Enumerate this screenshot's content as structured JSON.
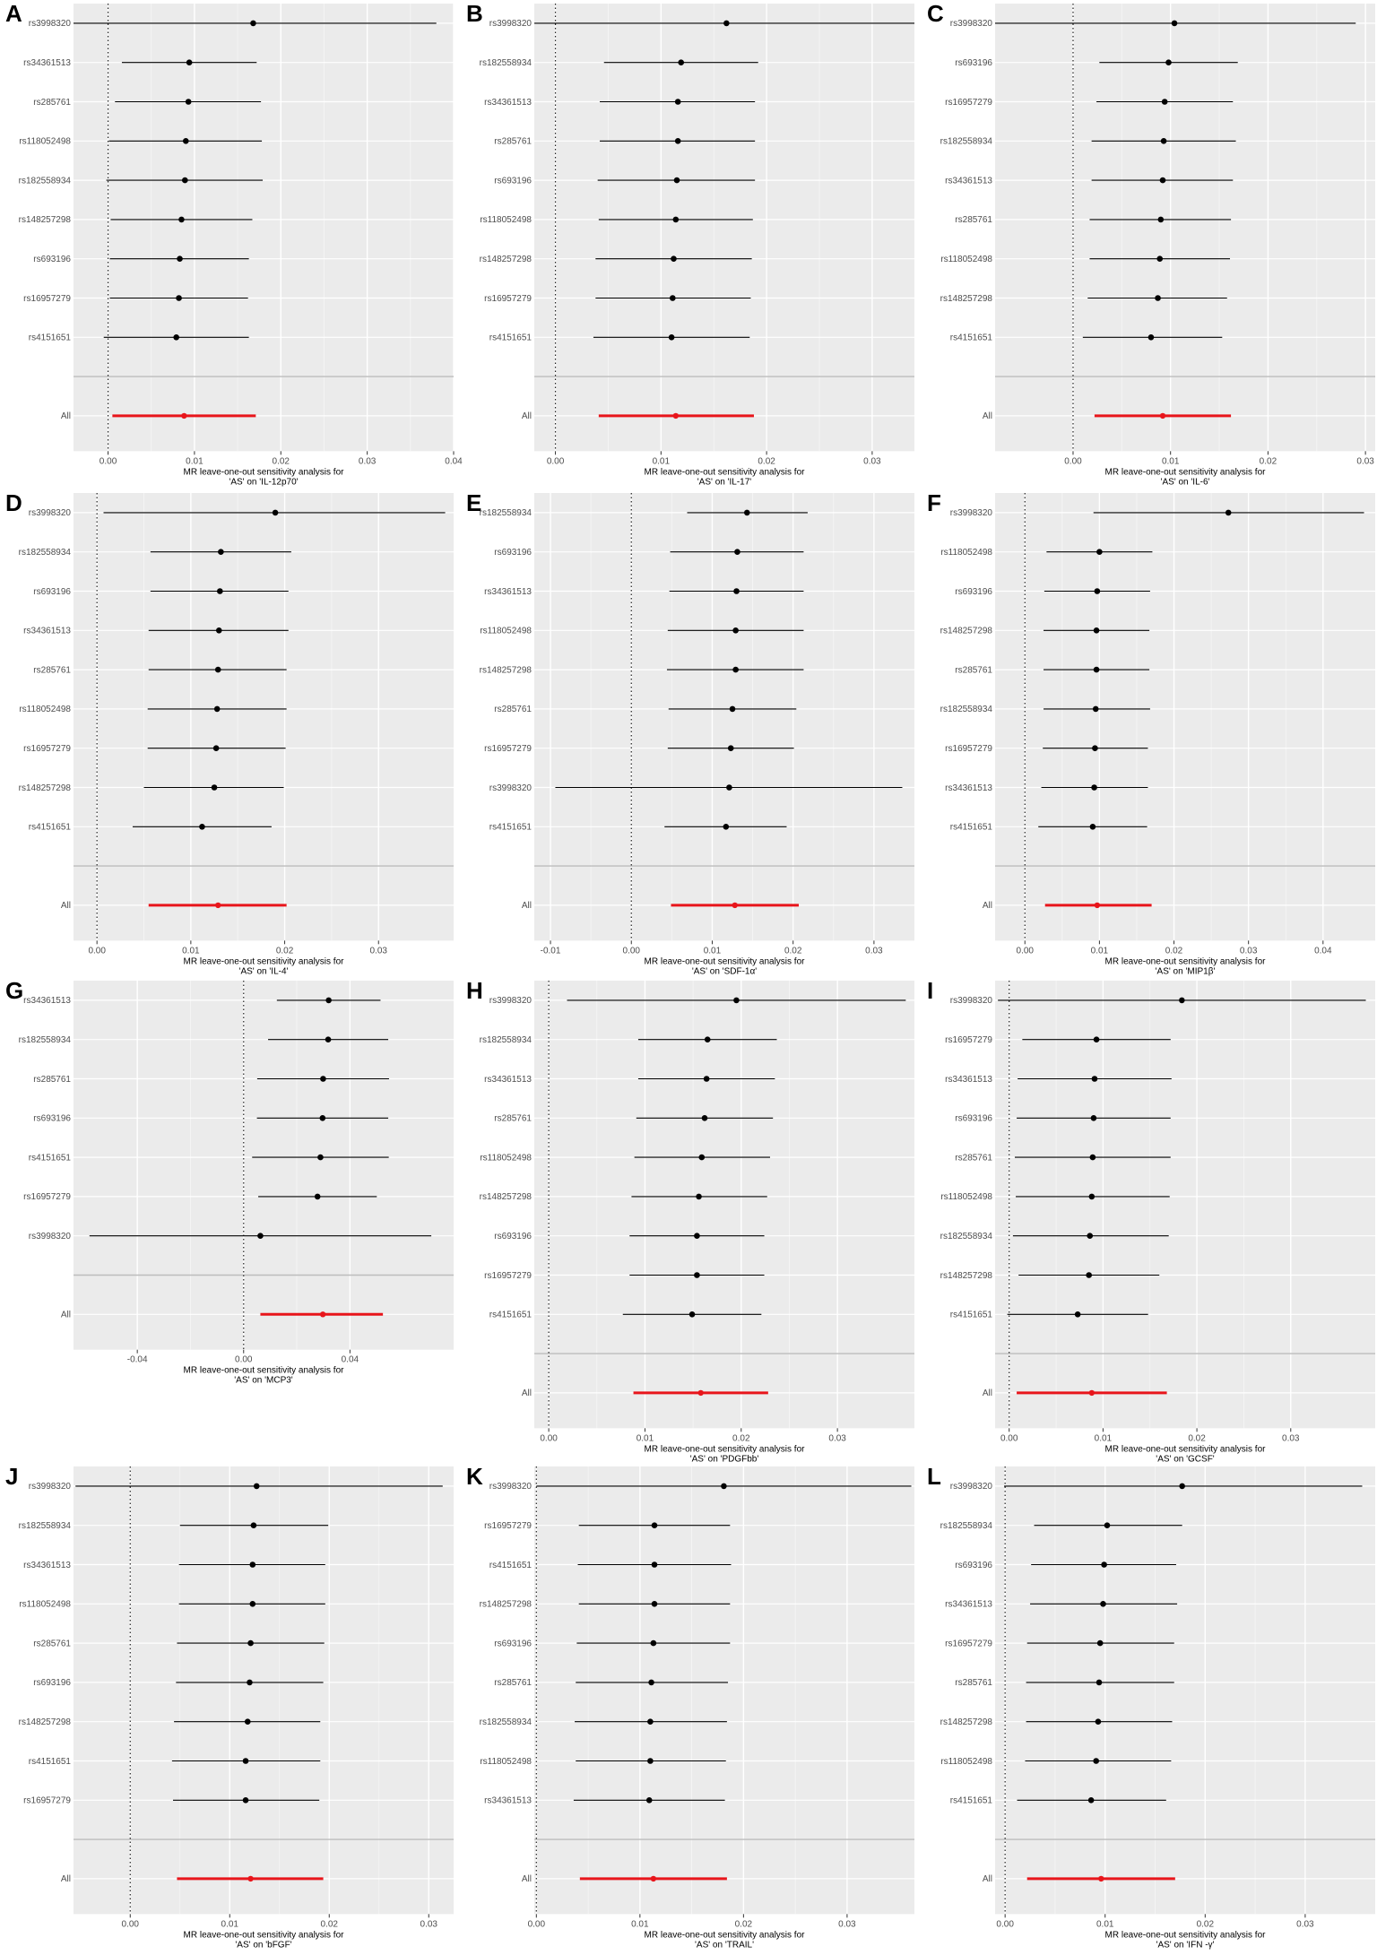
{
  "chart_data": [
    {
      "letter": "A",
      "type": "forest",
      "title": "",
      "xlabel": "MR leave-one-out sensitivity analysis for\n'AS' on 'IL-12p70'",
      "ylabel": "",
      "xlim": [
        -0.004,
        0.04
      ],
      "xticks": [
        0.0,
        0.01,
        0.02,
        0.03,
        0.04
      ],
      "snps": [
        "rs3998320",
        "rs34361513",
        "rs285761",
        "rs118052498",
        "rs182558934",
        "rs148257298",
        "rs693196",
        "rs16957279",
        "rs4151651"
      ],
      "estimate": [
        0.0168,
        0.0094,
        0.0093,
        0.009,
        0.0089,
        0.0085,
        0.0083,
        0.0082,
        0.0079
      ],
      "lower": [
        -0.004,
        0.0016,
        0.0008,
        0.0001,
        -0.0002,
        0.0003,
        0.0002,
        0.0002,
        -0.0005
      ],
      "upper": [
        0.038,
        0.0172,
        0.0177,
        0.0178,
        0.0179,
        0.0167,
        0.0163,
        0.0162,
        0.0163
      ],
      "all": {
        "label": "All",
        "estimate": 0.0088,
        "lower": 0.0005,
        "upper": 0.0171
      },
      "grid": true,
      "colors": {
        "snp": "#000000",
        "all": "#e8151b",
        "panel_bg": "#ebebeb"
      }
    },
    {
      "letter": "B",
      "type": "forest",
      "title": "",
      "xlabel": "MR leave-one-out sensitivity analysis for\n'AS' on 'IL-17'",
      "ylabel": "",
      "xlim": [
        -0.002,
        0.034
      ],
      "xticks": [
        0.0,
        0.01,
        0.02,
        0.03
      ],
      "snps": [
        "rs3998320",
        "rs182558934",
        "rs34361513",
        "rs285761",
        "rs693196",
        "rs118052498",
        "rs148257298",
        "rs16957279",
        "rs4151651"
      ],
      "estimate": [
        0.0162,
        0.0119,
        0.0116,
        0.0116,
        0.0115,
        0.0114,
        0.0112,
        0.0111,
        0.011
      ],
      "lower": [
        -0.002,
        0.0046,
        0.0042,
        0.0042,
        0.004,
        0.0041,
        0.0038,
        0.0038,
        0.0036
      ],
      "upper": [
        0.034,
        0.0192,
        0.0189,
        0.0189,
        0.0189,
        0.0187,
        0.0186,
        0.0185,
        0.0184
      ],
      "all": {
        "label": "All",
        "estimate": 0.0114,
        "lower": 0.0041,
        "upper": 0.0188
      },
      "grid": true,
      "colors": {
        "snp": "#000000",
        "all": "#e8151b",
        "panel_bg": "#ebebeb"
      }
    },
    {
      "letter": "C",
      "type": "forest",
      "title": "",
      "xlabel": "MR leave-one-out sensitivity analysis for\n'AS' on 'IL-6'",
      "ylabel": "",
      "xlim": [
        -0.008,
        0.031
      ],
      "xticks": [
        0.0,
        0.01,
        0.02,
        0.03
      ],
      "snps": [
        "rs3998320",
        "rs693196",
        "rs16957279",
        "rs182558934",
        "rs34361513",
        "rs285761",
        "rs118052498",
        "rs148257298",
        "rs4151651"
      ],
      "estimate": [
        0.0104,
        0.0098,
        0.0094,
        0.0093,
        0.0092,
        0.009,
        0.0089,
        0.0087,
        0.008
      ],
      "lower": [
        -0.008,
        0.0027,
        0.0024,
        0.0019,
        0.0019,
        0.0017,
        0.0017,
        0.0015,
        0.001
      ],
      "upper": [
        0.029,
        0.0169,
        0.0164,
        0.0167,
        0.0164,
        0.0162,
        0.0161,
        0.0158,
        0.0153
      ],
      "all": {
        "label": "All",
        "estimate": 0.0092,
        "lower": 0.0022,
        "upper": 0.0162
      },
      "grid": true,
      "colors": {
        "snp": "#000000",
        "all": "#e8151b",
        "panel_bg": "#ebebeb"
      }
    },
    {
      "letter": "D",
      "type": "forest",
      "title": "",
      "xlabel": "MR leave-one-out sensitivity analysis for\n'AS' on 'IL-4'",
      "ylabel": "",
      "xlim": [
        -0.0025,
        0.038
      ],
      "xticks": [
        0.0,
        0.01,
        0.02,
        0.03
      ],
      "snps": [
        "rs3998320",
        "rs182558934",
        "rs693196",
        "rs34361513",
        "rs285761",
        "rs118052498",
        "rs16957279",
        "rs148257298",
        "rs4151651"
      ],
      "estimate": [
        0.019,
        0.0132,
        0.0131,
        0.013,
        0.0129,
        0.0128,
        0.0127,
        0.0125,
        0.0112
      ],
      "lower": [
        0.0007,
        0.0057,
        0.0057,
        0.0055,
        0.0055,
        0.0054,
        0.0054,
        0.005,
        0.0038
      ],
      "upper": [
        0.0371,
        0.0207,
        0.0204,
        0.0204,
        0.0202,
        0.0202,
        0.0201,
        0.0199,
        0.0186
      ],
      "all": {
        "label": "All",
        "estimate": 0.0129,
        "lower": 0.0055,
        "upper": 0.0202
      },
      "grid": true,
      "colors": {
        "snp": "#000000",
        "all": "#e8151b",
        "panel_bg": "#ebebeb"
      }
    },
    {
      "letter": "E",
      "type": "forest",
      "title": "",
      "xlabel": "MR leave-one-out sensitivity analysis for\n'AS' on 'SDF-1α'",
      "ylabel": "",
      "xlim": [
        -0.012,
        0.035
      ],
      "xticks": [
        -0.01,
        0.0,
        0.01,
        0.02,
        0.03
      ],
      "snps": [
        "rs182558934",
        "rs693196",
        "rs34361513",
        "rs118052498",
        "rs148257298",
        "rs285761",
        "rs16957279",
        "rs3998320",
        "rs4151651"
      ],
      "estimate": [
        0.0143,
        0.0131,
        0.013,
        0.0129,
        0.0129,
        0.0125,
        0.0123,
        0.0121,
        0.0117
      ],
      "lower": [
        0.0069,
        0.0048,
        0.0047,
        0.0045,
        0.0044,
        0.0046,
        0.0045,
        -0.0094,
        0.0041
      ],
      "upper": [
        0.0218,
        0.0213,
        0.0213,
        0.0213,
        0.0213,
        0.0204,
        0.0201,
        0.0335,
        0.0192
      ],
      "all": {
        "label": "All",
        "estimate": 0.0128,
        "lower": 0.0049,
        "upper": 0.0207
      },
      "grid": true,
      "colors": {
        "snp": "#000000",
        "all": "#e8151b",
        "panel_bg": "#ebebeb"
      }
    },
    {
      "letter": "F",
      "type": "forest",
      "title": "",
      "xlabel": "MR leave-one-out sensitivity analysis for\n'AS' on 'MIP1β'",
      "ylabel": "",
      "xlim": [
        -0.004,
        0.047
      ],
      "xticks": [
        0.0,
        0.01,
        0.02,
        0.03,
        0.04
      ],
      "snps": [
        "rs3998320",
        "rs118052498",
        "rs693196",
        "rs148257298",
        "rs285761",
        "rs182558934",
        "rs16957279",
        "rs34361513",
        "rs4151651"
      ],
      "estimate": [
        0.0273,
        0.01,
        0.0097,
        0.0096,
        0.0096,
        0.0095,
        0.0094,
        0.0093,
        0.0091
      ],
      "lower": [
        0.0092,
        0.0029,
        0.0026,
        0.0025,
        0.0025,
        0.0025,
        0.0024,
        0.0022,
        0.0018
      ],
      "upper": [
        0.0455,
        0.0171,
        0.0168,
        0.0167,
        0.0167,
        0.0168,
        0.0165,
        0.0165,
        0.0164
      ],
      "all": {
        "label": "All",
        "estimate": 0.0097,
        "lower": 0.0027,
        "upper": 0.017
      },
      "grid": true,
      "colors": {
        "snp": "#000000",
        "all": "#e8151b",
        "panel_bg": "#ebebeb"
      }
    },
    {
      "letter": "G",
      "type": "forest",
      "title": "",
      "xlabel": "MR leave-one-out sensitivity analysis for\n'AS' on 'MCP3'",
      "ylabel": "",
      "xlim": [
        -0.064,
        0.079
      ],
      "xticks": [
        -0.04,
        0.0,
        0.04
      ],
      "snps": [
        "rs34361513",
        "rs182558934",
        "rs285761",
        "rs693196",
        "rs4151651",
        "rs16957279",
        "rs3998320"
      ],
      "estimate": [
        0.032,
        0.0318,
        0.0299,
        0.0297,
        0.0289,
        0.0278,
        0.0063
      ],
      "lower": [
        0.0125,
        0.0092,
        0.0051,
        0.005,
        0.0032,
        0.0055,
        -0.058
      ],
      "upper": [
        0.0515,
        0.0544,
        0.0547,
        0.0544,
        0.0546,
        0.0501,
        0.0706
      ],
      "all": {
        "label": "All",
        "estimate": 0.0298,
        "lower": 0.0063,
        "upper": 0.0524
      },
      "grid": true,
      "colors": {
        "snp": "#000000",
        "all": "#e8151b",
        "panel_bg": "#ebebeb"
      }
    },
    {
      "letter": "H",
      "type": "forest",
      "title": "",
      "xlabel": "MR leave-one-out sensitivity analysis for\n'AS' on 'PDGFbb'",
      "ylabel": "",
      "xlim": [
        -0.0015,
        0.038
      ],
      "xticks": [
        0.0,
        0.01,
        0.02,
        0.03
      ],
      "snps": [
        "rs3998320",
        "rs182558934",
        "rs34361513",
        "rs285761",
        "rs118052498",
        "rs148257298",
        "rs693196",
        "rs16957279",
        "rs4151651"
      ],
      "estimate": [
        0.0195,
        0.0165,
        0.0164,
        0.0162,
        0.0159,
        0.0156,
        0.0154,
        0.0154,
        0.0149
      ],
      "lower": [
        0.0019,
        0.0093,
        0.0093,
        0.0091,
        0.0089,
        0.0086,
        0.0084,
        0.0084,
        0.0077
      ],
      "upper": [
        0.0371,
        0.0237,
        0.0235,
        0.0233,
        0.023,
        0.0227,
        0.0224,
        0.0224,
        0.0221
      ],
      "all": {
        "label": "All",
        "estimate": 0.0158,
        "lower": 0.0088,
        "upper": 0.0228
      },
      "grid": true,
      "colors": {
        "snp": "#000000",
        "all": "#e8151b",
        "panel_bg": "#ebebeb"
      }
    },
    {
      "letter": "I",
      "type": "forest",
      "title": "",
      "xlabel": "MR leave-one-out sensitivity analysis for\n'AS' on 'GCSF'",
      "ylabel": "",
      "xlim": [
        -0.0015,
        0.039
      ],
      "xticks": [
        0.0,
        0.01,
        0.02,
        0.03
      ],
      "snps": [
        "rs3998320",
        "rs16957279",
        "rs34361513",
        "rs693196",
        "rs285761",
        "rs118052498",
        "rs182558934",
        "rs148257298",
        "rs4151651"
      ],
      "estimate": [
        0.0184,
        0.0093,
        0.0091,
        0.009,
        0.0089,
        0.0088,
        0.0086,
        0.0085,
        0.0073
      ],
      "lower": [
        -0.0012,
        0.0014,
        0.0009,
        0.0008,
        0.0006,
        0.0007,
        0.0004,
        0.001,
        -0.0002
      ],
      "upper": [
        0.038,
        0.0172,
        0.0173,
        0.0172,
        0.0172,
        0.0171,
        0.017,
        0.016,
        0.0148
      ],
      "all": {
        "label": "All",
        "estimate": 0.0088,
        "lower": 0.0008,
        "upper": 0.0168
      },
      "grid": true,
      "colors": {
        "snp": "#000000",
        "all": "#e8151b",
        "panel_bg": "#ebebeb"
      }
    },
    {
      "letter": "J",
      "type": "forest",
      "title": "",
      "xlabel": "MR leave-one-out sensitivity analysis for\n'AS' on 'bFGF'",
      "ylabel": "",
      "xlim": [
        -0.0057,
        0.0325
      ],
      "xticks": [
        0.0,
        0.01,
        0.02,
        0.03
      ],
      "snps": [
        "rs3998320",
        "rs182558934",
        "rs34361513",
        "rs118052498",
        "rs285761",
        "rs693196",
        "rs148257298",
        "rs4151651",
        "rs16957279"
      ],
      "estimate": [
        0.0127,
        0.0124,
        0.0123,
        0.0123,
        0.0121,
        0.012,
        0.0118,
        0.0116,
        0.0116
      ],
      "lower": [
        -0.0055,
        0.005,
        0.0049,
        0.0049,
        0.0047,
        0.0046,
        0.0044,
        0.0042,
        0.0043
      ],
      "upper": [
        0.0314,
        0.0199,
        0.0196,
        0.0196,
        0.0195,
        0.0194,
        0.0191,
        0.0191,
        0.019
      ],
      "all": {
        "label": "All",
        "estimate": 0.0121,
        "lower": 0.0047,
        "upper": 0.0194
      },
      "grid": true,
      "colors": {
        "snp": "#000000",
        "all": "#e8151b",
        "panel_bg": "#ebebeb"
      }
    },
    {
      "letter": "K",
      "type": "forest",
      "title": "",
      "xlabel": "MR leave-one-out sensitivity analysis for\n'AS' on 'TRAIL'",
      "ylabel": "",
      "xlim": [
        -0.0002,
        0.0365
      ],
      "xticks": [
        0.0,
        0.01,
        0.02,
        0.03
      ],
      "snps": [
        "rs3998320",
        "rs16957279",
        "rs4151651",
        "rs148257298",
        "rs693196",
        "rs285761",
        "rs182558934",
        "rs118052498",
        "rs34361513"
      ],
      "estimate": [
        0.0181,
        0.0114,
        0.0114,
        0.0114,
        0.0113,
        0.0111,
        0.011,
        0.011,
        0.0109
      ],
      "lower": [
        0.0,
        0.0041,
        0.004,
        0.0041,
        0.0039,
        0.0038,
        0.0037,
        0.0038,
        0.0036
      ],
      "upper": [
        0.0362,
        0.0187,
        0.0188,
        0.0187,
        0.0187,
        0.0185,
        0.0184,
        0.0183,
        0.0182
      ],
      "all": {
        "label": "All",
        "estimate": 0.0113,
        "lower": 0.0042,
        "upper": 0.0184
      },
      "grid": true,
      "colors": {
        "snp": "#000000",
        "all": "#e8151b",
        "panel_bg": "#ebebeb"
      }
    },
    {
      "letter": "L",
      "type": "forest",
      "title": "",
      "xlabel": "MR leave-one-out sensitivity analysis for\n'AS' on 'IFN -γ'",
      "ylabel": "",
      "xlim": [
        -0.001,
        0.037
      ],
      "xticks": [
        0.0,
        0.01,
        0.02,
        0.03
      ],
      "snps": [
        "rs3998320",
        "rs182558934",
        "rs693196",
        "rs34361513",
        "rs16957279",
        "rs285761",
        "rs148257298",
        "rs118052498",
        "rs4151651"
      ],
      "estimate": [
        0.0177,
        0.0102,
        0.0099,
        0.0098,
        0.0095,
        0.0094,
        0.0093,
        0.0091,
        0.0086
      ],
      "lower": [
        -0.0001,
        0.0029,
        0.0026,
        0.0025,
        0.0022,
        0.0021,
        0.0021,
        0.002,
        0.0012
      ],
      "upper": [
        0.0357,
        0.0177,
        0.0171,
        0.0172,
        0.0169,
        0.0169,
        0.0167,
        0.0166,
        0.0161
      ],
      "all": {
        "label": "All",
        "estimate": 0.0096,
        "lower": 0.0022,
        "upper": 0.017
      },
      "grid": true,
      "colors": {
        "snp": "#000000",
        "all": "#e8151b",
        "panel_bg": "#ebebeb"
      }
    }
  ]
}
